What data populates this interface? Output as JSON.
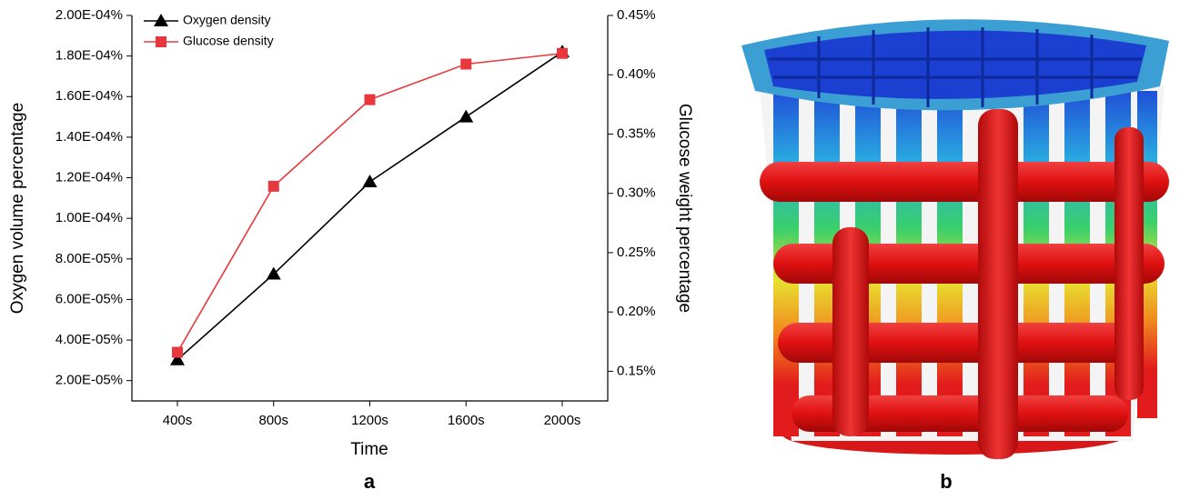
{
  "chart_data": {
    "type": "line",
    "x_label": "Time",
    "y_label": "Oxygen volume percentage",
    "y2_label": "Glucose weight percentage",
    "categories": [
      "400s",
      "800s",
      "1200s",
      "1600s",
      "2000s"
    ],
    "series": [
      {
        "name": "Oxygen density",
        "color": "#000000",
        "marker": "triangle",
        "values": [
          3.03e-05,
          7.25e-05,
          0.000118,
          0.00015,
          0.000182
        ]
      },
      {
        "name": "Glucose density",
        "color": "#e8383d",
        "marker": "square",
        "axis": "y2",
        "values": [
          0.166,
          0.306,
          0.379,
          0.409,
          0.418
        ]
      }
    ],
    "ylim": [
      1e-05,
      0.0002
    ],
    "yticks": [
      {
        "value": 2e-05,
        "label": "2.00E-05%"
      },
      {
        "value": 4e-05,
        "label": "4.00E-05%"
      },
      {
        "value": 6e-05,
        "label": "6.00E-05%"
      },
      {
        "value": 8e-05,
        "label": "8.00E-05%"
      },
      {
        "value": 0.0001,
        "label": "1.00E-04%"
      },
      {
        "value": 0.00012,
        "label": "1.20E-04%"
      },
      {
        "value": 0.00014,
        "label": "1.40E-04%"
      },
      {
        "value": 0.00016,
        "label": "1.60E-04%"
      },
      {
        "value": 0.00018,
        "label": "1.80E-04%"
      },
      {
        "value": 0.0002,
        "label": "2.00E-04%"
      }
    ],
    "y2lim": [
      0.125,
      0.45
    ],
    "y2ticks": [
      {
        "value": 0.15,
        "label": "0.15%"
      },
      {
        "value": 0.2,
        "label": "0.20%"
      },
      {
        "value": 0.25,
        "label": "0.25%"
      },
      {
        "value": 0.3,
        "label": "0.30%"
      },
      {
        "value": 0.35,
        "label": "0.35%"
      },
      {
        "value": 0.4,
        "label": "0.40%"
      },
      {
        "value": 0.45,
        "label": "0.45%"
      }
    ],
    "legend": "upper left",
    "panel_label": "a"
  },
  "figure_b": {
    "panel_label": "b"
  }
}
